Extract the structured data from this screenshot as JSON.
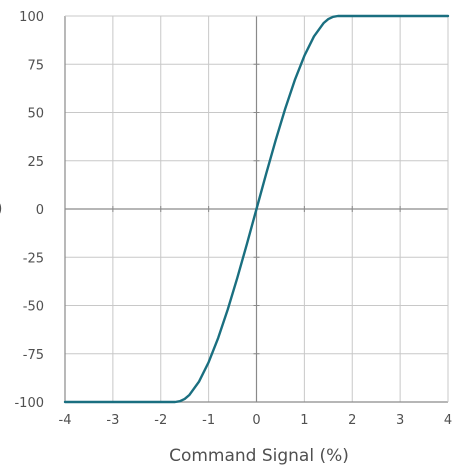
{
  "chart_data": {
    "type": "line",
    "title": "",
    "xlabel": "Command Signal (%)",
    "ylabel": "",
    "ylabel_visible_fragment": ")",
    "xlim": [
      -4,
      4
    ],
    "ylim": [
      -100,
      100
    ],
    "xticks": [
      -4,
      -3,
      -2,
      -1,
      0,
      1,
      2,
      3,
      4
    ],
    "yticks": [
      100,
      75,
      50,
      25,
      0,
      -25,
      -50,
      -75,
      -100
    ],
    "grid": true,
    "legend": "none",
    "colors": {
      "line": "#1a6f80",
      "grid": "#c8c8c8",
      "zero_axis": "#8a8a8a",
      "text": "#505050"
    },
    "series": [
      {
        "x": [
          -4,
          -1.7,
          -1.6,
          -1.5,
          -1.4,
          -1.2,
          -1.0,
          -0.8,
          -0.6,
          -0.4,
          -0.2,
          0,
          0.2,
          0.4,
          0.6,
          0.8,
          1.0,
          1.2,
          1.4,
          1.5,
          1.6,
          1.7,
          4
        ],
        "y": [
          -100,
          -100,
          -99.6,
          -98.4,
          -96.3,
          -89.4,
          -79.4,
          -66.8,
          -52.0,
          -35.6,
          -18.1,
          0,
          18.1,
          35.6,
          52.0,
          66.8,
          79.4,
          89.4,
          96.3,
          98.4,
          99.6,
          100,
          100
        ]
      }
    ]
  }
}
